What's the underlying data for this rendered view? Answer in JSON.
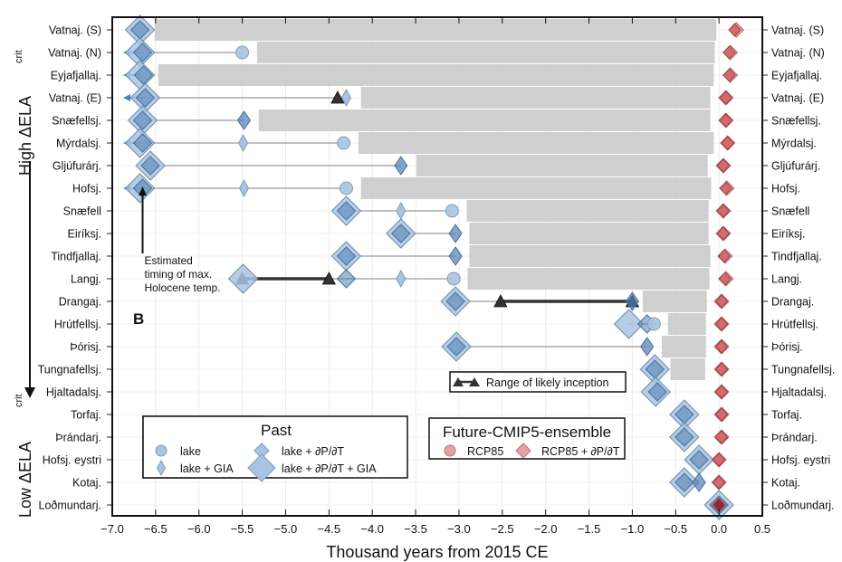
{
  "chart_data": {
    "type": "scatter",
    "panel_label": "B",
    "xlabel": "Thousand years from 2015 CE",
    "xlim": [
      -7.0,
      0.5
    ],
    "xticks": [
      "−7.0",
      "−6.5",
      "−6.0",
      "−5.5",
      "−5.0",
      "−4.5",
      "−4.0",
      "−3.5",
      "−3.0",
      "−2.5",
      "−2.0",
      "−1.5",
      "−1.0",
      "−0.5",
      "0.0",
      "0.5"
    ],
    "xtick_values": [
      -7.0,
      -6.5,
      -6.0,
      -5.5,
      -5.0,
      -4.5,
      -4.0,
      -3.5,
      -3.0,
      -2.5,
      -2.0,
      -1.5,
      -1.0,
      -0.5,
      0.0,
      0.5
    ],
    "grid": true,
    "ylabel_top": "High ΔELA",
    "ylabel_bottom": "Low ΔELA",
    "ylabel_sup": "crit",
    "annotation": [
      "Estimated",
      "timing of max.",
      "Holocene temp."
    ],
    "annotation_x": -6.65,
    "colors": {
      "past": "#a9c4e0",
      "past_dark": "#4f7fb4",
      "future": "#d46a6e",
      "future_dark": "#8c2a3a",
      "bar": "#cccccc",
      "inception": "#333333"
    },
    "legend_past": {
      "title": "Past",
      "items": [
        "lake",
        "lake  +  ∂P/∂T",
        "lake  +  GIA",
        "lake  +  ∂P/∂T  +  GIA"
      ]
    },
    "legend_future": {
      "title": "Future-CMIP5-ensemble",
      "items": [
        "RCP85",
        "RCP85  +  ∂P/∂T"
      ]
    },
    "legend_inception": "Range of likely inception",
    "rows": [
      {
        "name": "Vatnaj. (S)",
        "lake": null,
        "gia": null,
        "dpdt": -6.68,
        "dpdt_gia": -6.68,
        "arrow": false,
        "bar": [
          -6.51,
          -0.03
        ],
        "rcp": 0.18,
        "rcp_dpdt": 0.2,
        "inception": null
      },
      {
        "name": "Vatnaj. (N)",
        "lake": -5.5,
        "gia": null,
        "dpdt": -6.65,
        "dpdt_gia": -6.68,
        "arrow": true,
        "bar": [
          -5.33,
          -0.05
        ],
        "rcp": 0.12,
        "rcp_dpdt": 0.13,
        "inception": null
      },
      {
        "name": "Eyjafjallaj.",
        "lake": null,
        "gia": null,
        "dpdt": -6.64,
        "dpdt_gia": -6.68,
        "arrow": true,
        "bar": [
          -6.47,
          -0.06
        ],
        "rcp": 0.12,
        "rcp_dpdt": 0.13,
        "inception": null
      },
      {
        "name": "Vatnaj. (E)",
        "lake": null,
        "gia": -4.3,
        "dpdt": -6.62,
        "dpdt_gia": -6.62,
        "arrow": true,
        "bar": [
          -4.13,
          -0.1
        ],
        "rcp": 0.08,
        "rcp_dpdt": 0.08,
        "inception": [
          -4.4
        ]
      },
      {
        "name": "Snæfellsj.",
        "lake": null,
        "gia": null,
        "dpdt": -5.48,
        "dpdt_gia": -6.65,
        "arrow": false,
        "bar": [
          -5.31,
          -0.1
        ],
        "rcp": 0.08,
        "rcp_dpdt": 0.08,
        "inception": null,
        "dpdt_main": -6.65
      },
      {
        "name": "Mýrdalsj.",
        "lake": -4.33,
        "gia": -5.49,
        "dpdt": -6.65,
        "dpdt_gia": -6.68,
        "arrow": true,
        "bar": [
          -4.16,
          -0.06
        ],
        "rcp": 0.1,
        "rcp_dpdt": 0.1,
        "inception": null
      },
      {
        "name": "Gljúfurárj.",
        "lake": null,
        "gia": null,
        "dpdt": -3.67,
        "dpdt_gia": -6.56,
        "arrow": false,
        "bar": [
          -3.49,
          -0.13
        ],
        "rcp": 0.05,
        "rcp_dpdt": 0.05,
        "inception": null,
        "dpdt_main": -6.56
      },
      {
        "name": "Hofsj.",
        "lake": -4.3,
        "gia": -5.48,
        "dpdt": -6.65,
        "dpdt_gia": -6.68,
        "arrow": true,
        "bar": [
          -4.13,
          -0.09
        ],
        "rcp": 0.08,
        "rcp_dpdt": 0.09,
        "inception": null
      },
      {
        "name": "Snæfell",
        "lake": -3.08,
        "gia": -3.67,
        "dpdt": -4.3,
        "dpdt_gia": -4.3,
        "arrow": false,
        "bar": [
          -2.91,
          -0.12
        ],
        "rcp": 0.05,
        "rcp_dpdt": 0.05,
        "inception": null
      },
      {
        "name": "Eiríksj.",
        "lake": null,
        "gia": null,
        "dpdt": -3.04,
        "dpdt_gia": -3.67,
        "arrow": false,
        "bar": [
          -2.88,
          -0.12
        ],
        "rcp": 0.05,
        "rcp_dpdt": 0.05,
        "inception": null,
        "dpdt_main": -3.67
      },
      {
        "name": "Tindfjallaj.",
        "lake": null,
        "gia": null,
        "dpdt": -3.04,
        "dpdt_gia": -4.3,
        "arrow": false,
        "bar": [
          -2.88,
          -0.1
        ],
        "rcp": 0.06,
        "rcp_dpdt": 0.07,
        "inception": null,
        "dpdt_main": -4.3
      },
      {
        "name": "Langj.",
        "lake": -3.06,
        "gia": -3.67,
        "dpdt": -4.3,
        "dpdt_gia": -5.49,
        "arrow": false,
        "bar": [
          -2.9,
          -0.11
        ],
        "rcp": 0.07,
        "rcp_dpdt": 0.08,
        "inception": [
          -5.5,
          -4.5
        ]
      },
      {
        "name": "Drangaj.",
        "lake": null,
        "gia": null,
        "dpdt": -1.0,
        "dpdt_gia": -3.04,
        "arrow": false,
        "bar": [
          -0.88,
          -0.14
        ],
        "rcp": 0.03,
        "rcp_dpdt": 0.03,
        "inception": [
          -2.52,
          -1.0
        ],
        "dpdt_main": -3.04
      },
      {
        "name": "Hrútfellsj.",
        "lake": -0.75,
        "gia": null,
        "dpdt": -0.83,
        "dpdt_gia": -1.04,
        "arrow": false,
        "bar": [
          -0.59,
          -0.15
        ],
        "rcp": 0.03,
        "rcp_dpdt": 0.03,
        "inception": null
      },
      {
        "name": "Þórisj.",
        "lake": null,
        "gia": null,
        "dpdt": -0.83,
        "dpdt_gia": -3.03,
        "arrow": false,
        "bar": [
          -0.66,
          -0.15
        ],
        "rcp": 0.03,
        "rcp_dpdt": 0.03,
        "inception": null,
        "dpdt_main": -3.03
      },
      {
        "name": "Tungnafellsj.",
        "lake": null,
        "gia": null,
        "dpdt": -0.74,
        "dpdt_gia": -0.74,
        "arrow": false,
        "bar": [
          -0.56,
          -0.16
        ],
        "rcp": 0.03,
        "rcp_dpdt": 0.03,
        "inception": null
      },
      {
        "name": "Hjaltadalsj.",
        "lake": null,
        "gia": null,
        "dpdt": -0.71,
        "dpdt_gia": -0.73,
        "arrow": false,
        "bar": null,
        "rcp": 0.03,
        "rcp_dpdt": 0.03,
        "inception": null
      },
      {
        "name": "Torfaj.",
        "lake": null,
        "gia": null,
        "dpdt": -0.4,
        "dpdt_gia": -0.4,
        "arrow": false,
        "bar": null,
        "rcp": 0.03,
        "rcp_dpdt": 0.03,
        "inception": null
      },
      {
        "name": "Þrándarj.",
        "lake": null,
        "gia": null,
        "dpdt": -0.4,
        "dpdt_gia": -0.4,
        "arrow": false,
        "bar": null,
        "rcp": 0.03,
        "rcp_dpdt": 0.03,
        "inception": null
      },
      {
        "name": "Hofsj. eystri",
        "lake": null,
        "gia": null,
        "dpdt": -0.23,
        "dpdt_gia": -0.23,
        "arrow": false,
        "bar": null,
        "rcp": 0.0,
        "rcp_dpdt": 0.0,
        "inception": null
      },
      {
        "name": "Kotaj.",
        "lake": null,
        "gia": null,
        "dpdt": -0.23,
        "dpdt_gia": -0.4,
        "arrow": false,
        "bar": null,
        "rcp": 0.0,
        "rcp_dpdt": 0.0,
        "inception": null,
        "dpdt_main": -0.4
      },
      {
        "name": "Loðmundarj.",
        "lake": null,
        "gia": null,
        "dpdt": 0.0,
        "dpdt_gia": 0.0,
        "arrow": false,
        "bar": null,
        "rcp": 0.0,
        "rcp_dpdt": 0.0,
        "inception": null,
        "future_dark": true
      }
    ]
  }
}
